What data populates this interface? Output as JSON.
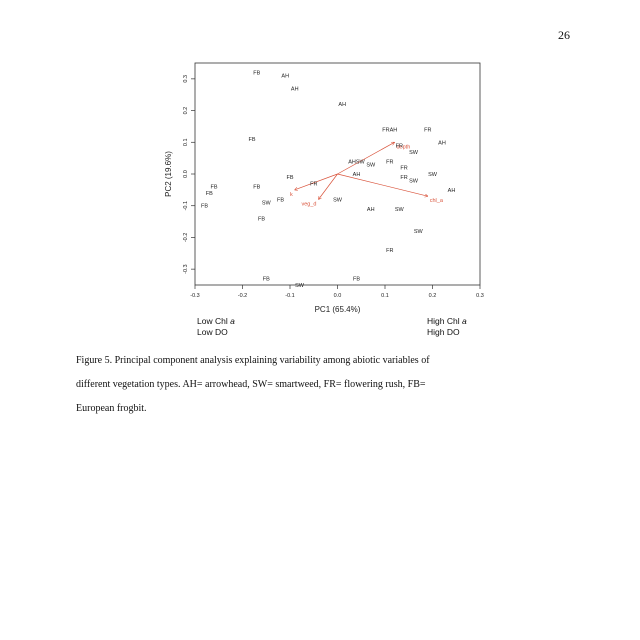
{
  "page": {
    "number": "26"
  },
  "figure": {
    "corner_left": {
      "line1": "Low Chl",
      "line1_italic": "a",
      "line2": "Low DO"
    },
    "corner_right": {
      "line1": "High Chl",
      "line1_italic": "a",
      "line2": "High DO"
    },
    "caption_lines": [
      "Figure 5.  Principal component analysis explaining variability among abiotic variables of",
      "different vegetation types.  AH= arrowhead, SW= smartweed, FR= flowering rush, FB=",
      "European frogbit."
    ]
  },
  "chart_data": {
    "type": "scatter",
    "title": "",
    "xlabel": "PC1 (65.4%)",
    "ylabel": "PC2 (19.6%)",
    "xlim": [
      -0.3,
      0.3
    ],
    "ylim": [
      -0.35,
      0.35
    ],
    "xticks": [
      -0.3,
      -0.2,
      -0.1,
      0.0,
      0.1,
      0.2,
      0.3
    ],
    "xtick_labels": [
      "-0.3",
      "-0.2",
      "-0.1",
      "0.0",
      "0.1",
      "0.2",
      "0.3"
    ],
    "yticks": [
      -0.3,
      -0.2,
      -0.1,
      0.0,
      0.1,
      0.2,
      0.3
    ],
    "ytick_labels": [
      "-0.3",
      "-0.2",
      "-0.1",
      "0.0",
      "0.1",
      "0.2",
      "0.3"
    ],
    "grid": false,
    "point_color": "#222222",
    "vector_color": "#d9533b",
    "points": [
      {
        "label": "FB",
        "x": -0.17,
        "y": 0.32
      },
      {
        "label": "AH",
        "x": -0.11,
        "y": 0.31
      },
      {
        "label": "AH",
        "x": -0.09,
        "y": 0.27
      },
      {
        "label": "AH",
        "x": 0.01,
        "y": 0.22
      },
      {
        "label": "FB",
        "x": -0.18,
        "y": 0.11
      },
      {
        "label": "FRAH",
        "x": 0.11,
        "y": 0.14
      },
      {
        "label": "FR",
        "x": 0.19,
        "y": 0.14
      },
      {
        "label": "AH",
        "x": 0.22,
        "y": 0.1
      },
      {
        "label": "FR",
        "x": 0.13,
        "y": 0.09
      },
      {
        "label": "SW",
        "x": 0.16,
        "y": 0.07
      },
      {
        "label": "FR",
        "x": 0.11,
        "y": 0.04
      },
      {
        "label": "AHSW",
        "x": 0.04,
        "y": 0.04
      },
      {
        "label": "SW",
        "x": 0.07,
        "y": 0.03
      },
      {
        "label": "FR",
        "x": 0.14,
        "y": 0.02
      },
      {
        "label": "AH",
        "x": 0.04,
        "y": 0.0
      },
      {
        "label": "FR",
        "x": 0.14,
        "y": -0.01
      },
      {
        "label": "SW",
        "x": 0.16,
        "y": -0.02
      },
      {
        "label": "SW",
        "x": 0.2,
        "y": 0.0
      },
      {
        "label": "AH",
        "x": 0.24,
        "y": -0.05
      },
      {
        "label": "FB",
        "x": -0.26,
        "y": -0.04
      },
      {
        "label": "FB",
        "x": -0.27,
        "y": -0.06
      },
      {
        "label": "FB",
        "x": -0.28,
        "y": -0.1
      },
      {
        "label": "FB",
        "x": -0.17,
        "y": -0.04
      },
      {
        "label": "FB",
        "x": -0.1,
        "y": -0.01
      },
      {
        "label": "FR",
        "x": -0.05,
        "y": -0.03
      },
      {
        "label": "SW",
        "x": -0.15,
        "y": -0.09
      },
      {
        "label": "FB",
        "x": -0.12,
        "y": -0.08
      },
      {
        "label": "SW",
        "x": 0.0,
        "y": -0.08
      },
      {
        "label": "FB",
        "x": -0.16,
        "y": -0.14
      },
      {
        "label": "AH",
        "x": 0.07,
        "y": -0.11
      },
      {
        "label": "SW",
        "x": 0.13,
        "y": -0.11
      },
      {
        "label": "SW",
        "x": 0.17,
        "y": -0.18
      },
      {
        "label": "FR",
        "x": 0.11,
        "y": -0.24
      },
      {
        "label": "FB",
        "x": -0.15,
        "y": -0.33
      },
      {
        "label": "SW",
        "x": -0.08,
        "y": -0.35
      },
      {
        "label": "FB",
        "x": 0.04,
        "y": -0.33
      }
    ],
    "vectors": [
      {
        "label": "depth",
        "x": 0.12,
        "y": 0.1
      },
      {
        "label": "chl_a",
        "x": 0.19,
        "y": -0.07
      },
      {
        "label": "veg_d",
        "x": -0.04,
        "y": -0.08
      },
      {
        "label": "k",
        "x": -0.09,
        "y": -0.05
      }
    ],
    "arrow_origin": [
      0.0,
      0.0
    ]
  }
}
